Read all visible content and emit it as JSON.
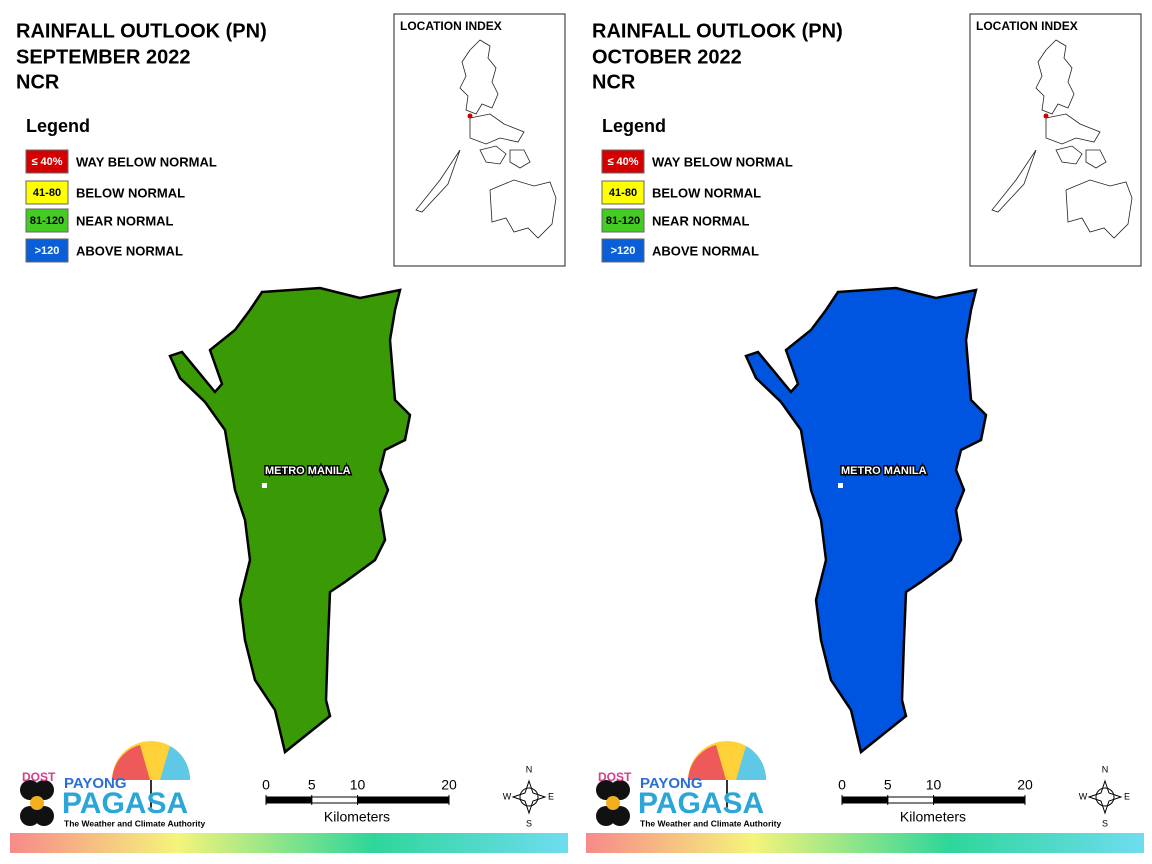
{
  "panels": [
    {
      "title": [
        "RAINFALL OUTLOOK (PN)",
        "SEPTEMBER 2022",
        "NCR"
      ],
      "map_color": "#3a9a06",
      "map_label": "METRO MANILA"
    },
    {
      "title": [
        "RAINFALL OUTLOOK (PN)",
        "OCTOBER 2022",
        "NCR"
      ],
      "map_color": "#0055e0",
      "map_label": "METRO MANILA"
    }
  ],
  "legend": {
    "title": "Legend",
    "items": [
      {
        "range": "≤ 40%",
        "label": "WAY BELOW NORMAL",
        "color": "#d40000",
        "text_color": "#ffffff"
      },
      {
        "range": "41-80",
        "label": "BELOW NORMAL",
        "color": "#ffff00",
        "text_color": "#000000"
      },
      {
        "range": "81-120",
        "label": "NEAR NORMAL",
        "color": "#44cc22",
        "text_color": "#000000"
      },
      {
        "range": ">120",
        "label": "ABOVE NORMAL",
        "color": "#0a5fd8",
        "text_color": "#ffffff"
      }
    ]
  },
  "location_index": "LOCATION INDEX",
  "scale": {
    "ticks": [
      0,
      5,
      10,
      20
    ],
    "unit": "Kilometers"
  },
  "compass": {
    "n": "N",
    "e": "E",
    "s": "S",
    "w": "W"
  },
  "logo": {
    "dost": "DOST",
    "payong": "PAYONG",
    "pagasa": "PAGASA",
    "tagline": "The Weather and Climate Authority"
  }
}
